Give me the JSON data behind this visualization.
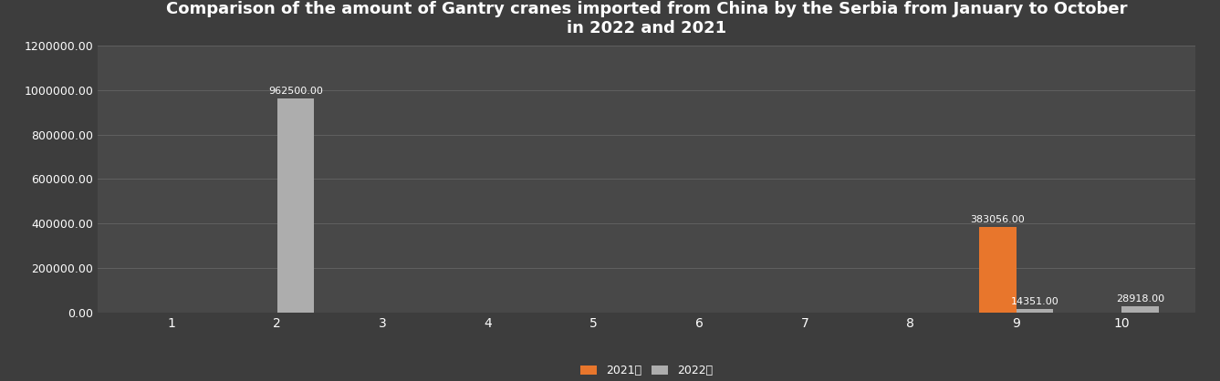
{
  "title": "Comparison of the amount of Gantry cranes imported from China by the Serbia from January to October\nin 2022 and 2021",
  "months": [
    1,
    2,
    3,
    4,
    5,
    6,
    7,
    8,
    9,
    10
  ],
  "values_2021": [
    0,
    0,
    0,
    0,
    0,
    0,
    0,
    0,
    383056.0,
    0
  ],
  "values_2022": [
    0,
    962500.0,
    0,
    0,
    0,
    0,
    0,
    0,
    14351.0,
    28918.0
  ],
  "color_2021": "#E8762C",
  "color_2022": "#ADADAD",
  "background_color": "#3D3D3D",
  "plot_bg_color": "#484848",
  "text_color": "#FFFFFF",
  "grid_color": "#606060",
  "ylim": [
    0,
    1200000
  ],
  "yticks": [
    0,
    200000,
    400000,
    600000,
    800000,
    1000000,
    1200000
  ],
  "legend_2021": "2021年",
  "legend_2022": "2022年",
  "bar_width": 0.35,
  "label_fontsize": 8,
  "title_fontsize": 13
}
